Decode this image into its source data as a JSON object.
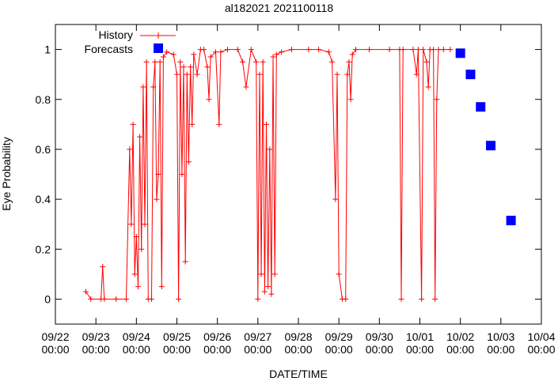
{
  "chart_data": {
    "type": "line",
    "title": "al182021 2021100118",
    "xlabel": "DATE/TIME",
    "ylabel": "Eye Probability",
    "xlim": [
      "2021-09-22 00:00",
      "2021-10-04 00:00"
    ],
    "ylim": [
      -0.1,
      1.1
    ],
    "x_tick_labels": [
      {
        "date": "09/22",
        "time": "00:00"
      },
      {
        "date": "09/23",
        "time": "00:00"
      },
      {
        "date": "09/24",
        "time": "00:00"
      },
      {
        "date": "09/25",
        "time": "00:00"
      },
      {
        "date": "09/26",
        "time": "00:00"
      },
      {
        "date": "09/27",
        "time": "00:00"
      },
      {
        "date": "09/28",
        "time": "00:00"
      },
      {
        "date": "09/29",
        "time": "00:00"
      },
      {
        "date": "09/30",
        "time": "00:00"
      },
      {
        "date": "10/01",
        "time": "00:00"
      },
      {
        "date": "10/02",
        "time": "00:00"
      },
      {
        "date": "10/03",
        "time": "00:00"
      },
      {
        "date": "10/04",
        "time": "00:00"
      }
    ],
    "y_ticks": [
      0,
      0.2,
      0.4,
      0.6,
      0.8,
      1
    ],
    "y_tick_labels": [
      "0",
      "0.2",
      "0.4",
      "0.6",
      "0.8",
      "1"
    ],
    "grid": false,
    "legend": "top-left",
    "series": [
      {
        "name": "History",
        "style": "line-with-plus-markers",
        "color": "#ff0000",
        "points": [
          [
            "2021-09-22 18:00",
            0.03
          ],
          [
            "2021-09-22 21:00",
            0.0
          ],
          [
            "2021-09-23 03:00",
            0.0
          ],
          [
            "2021-09-23 04:00",
            0.13
          ],
          [
            "2021-09-23 05:00",
            0.0
          ],
          [
            "2021-09-23 12:00",
            0.0
          ],
          [
            "2021-09-23 18:00",
            0.0
          ],
          [
            "2021-09-23 20:00",
            0.6
          ],
          [
            "2021-09-23 21:00",
            0.3
          ],
          [
            "2021-09-23 22:00",
            0.7
          ],
          [
            "2021-09-23 23:00",
            0.1
          ],
          [
            "2021-09-24 00:00",
            0.25
          ],
          [
            "2021-09-24 01:00",
            0.05
          ],
          [
            "2021-09-24 02:00",
            0.65
          ],
          [
            "2021-09-24 03:00",
            0.2
          ],
          [
            "2021-09-24 04:00",
            0.85
          ],
          [
            "2021-09-24 05:00",
            0.3
          ],
          [
            "2021-09-24 06:00",
            0.95
          ],
          [
            "2021-09-24 07:00",
            0.0
          ],
          [
            "2021-09-24 09:00",
            0.0
          ],
          [
            "2021-09-24 10:00",
            0.85
          ],
          [
            "2021-09-24 11:00",
            0.95
          ],
          [
            "2021-09-24 12:00",
            0.4
          ],
          [
            "2021-09-24 13:00",
            0.5
          ],
          [
            "2021-09-24 14:00",
            0.95
          ],
          [
            "2021-09-24 15:00",
            0.05
          ],
          [
            "2021-09-24 16:00",
            0.97
          ],
          [
            "2021-09-24 18:00",
            0.99
          ],
          [
            "2021-09-24 22:00",
            0.98
          ],
          [
            "2021-09-25 00:00",
            0.9
          ],
          [
            "2021-09-25 01:00",
            0.0
          ],
          [
            "2021-09-25 02:00",
            0.95
          ],
          [
            "2021-09-25 03:00",
            0.5
          ],
          [
            "2021-09-25 04:00",
            0.93
          ],
          [
            "2021-09-25 05:00",
            0.15
          ],
          [
            "2021-09-25 06:00",
            0.9
          ],
          [
            "2021-09-25 07:00",
            0.55
          ],
          [
            "2021-09-25 08:00",
            0.93
          ],
          [
            "2021-09-25 09:00",
            0.7
          ],
          [
            "2021-09-25 10:00",
            0.98
          ],
          [
            "2021-09-25 12:00",
            0.9
          ],
          [
            "2021-09-25 14:00",
            1.0
          ],
          [
            "2021-09-25 16:00",
            1.0
          ],
          [
            "2021-09-25 18:00",
            0.93
          ],
          [
            "2021-09-25 19:00",
            0.8
          ],
          [
            "2021-09-25 20:00",
            0.97
          ],
          [
            "2021-09-25 23:00",
            0.99
          ],
          [
            "2021-09-26 01:00",
            0.7
          ],
          [
            "2021-09-26 02:00",
            0.99
          ],
          [
            "2021-09-26 06:00",
            1.0
          ],
          [
            "2021-09-26 12:00",
            1.0
          ],
          [
            "2021-09-26 15:00",
            0.95
          ],
          [
            "2021-09-26 17:00",
            0.85
          ],
          [
            "2021-09-26 20:00",
            1.0
          ],
          [
            "2021-09-26 23:00",
            0.95
          ],
          [
            "2021-09-27 00:00",
            0.0
          ],
          [
            "2021-09-27 01:00",
            0.9
          ],
          [
            "2021-09-27 02:00",
            0.1
          ],
          [
            "2021-09-27 03:00",
            0.95
          ],
          [
            "2021-09-27 04:00",
            0.03
          ],
          [
            "2021-09-27 05:00",
            0.7
          ],
          [
            "2021-09-27 06:00",
            0.05
          ],
          [
            "2021-09-27 07:00",
            0.6
          ],
          [
            "2021-09-27 08:00",
            0.02
          ],
          [
            "2021-09-27 09:00",
            0.97
          ],
          [
            "2021-09-27 10:00",
            0.1
          ],
          [
            "2021-09-27 11:00",
            0.98
          ],
          [
            "2021-09-27 14:00",
            0.99
          ],
          [
            "2021-09-27 20:00",
            1.0
          ],
          [
            "2021-09-28 06:00",
            1.0
          ],
          [
            "2021-09-28 12:00",
            1.0
          ],
          [
            "2021-09-28 18:00",
            0.99
          ],
          [
            "2021-09-28 20:00",
            0.95
          ],
          [
            "2021-09-28 22:00",
            0.4
          ],
          [
            "2021-09-28 23:00",
            0.9
          ],
          [
            "2021-09-29 00:00",
            0.1
          ],
          [
            "2021-09-29 02:00",
            0.0
          ],
          [
            "2021-09-29 04:00",
            0.0
          ],
          [
            "2021-09-29 05:00",
            0.9
          ],
          [
            "2021-09-29 06:00",
            0.95
          ],
          [
            "2021-09-29 07:00",
            0.8
          ],
          [
            "2021-09-29 08:00",
            0.98
          ],
          [
            "2021-09-29 10:00",
            1.0
          ],
          [
            "2021-09-29 18:00",
            1.0
          ],
          [
            "2021-09-30 06:00",
            1.0
          ],
          [
            "2021-09-30 12:00",
            1.0
          ],
          [
            "2021-09-30 13:00",
            0.0
          ],
          [
            "2021-09-30 14:00",
            1.0
          ],
          [
            "2021-09-30 20:00",
            1.0
          ],
          [
            "2021-09-30 22:00",
            0.9
          ],
          [
            "2021-09-30 23:00",
            1.0
          ],
          [
            "2021-10-01 01:00",
            0.0
          ],
          [
            "2021-10-01 02:00",
            1.0
          ],
          [
            "2021-10-01 04:00",
            0.95
          ],
          [
            "2021-10-01 05:00",
            0.85
          ],
          [
            "2021-10-01 06:00",
            1.0
          ],
          [
            "2021-10-01 08:00",
            1.0
          ],
          [
            "2021-10-01 09:00",
            0.0
          ],
          [
            "2021-10-01 10:00",
            0.8
          ],
          [
            "2021-10-01 11:00",
            1.0
          ],
          [
            "2021-10-01 14:00",
            1.0
          ],
          [
            "2021-10-01 18:00",
            1.0
          ]
        ]
      },
      {
        "name": "Forecasts",
        "style": "square-markers",
        "color": "#0000ff",
        "points": [
          [
            "2021-10-02 00:00",
            0.985
          ],
          [
            "2021-10-02 06:00",
            0.9
          ],
          [
            "2021-10-02 12:00",
            0.77
          ],
          [
            "2021-10-02 18:00",
            0.615
          ],
          [
            "2021-10-03 06:00",
            0.315
          ]
        ]
      }
    ]
  }
}
